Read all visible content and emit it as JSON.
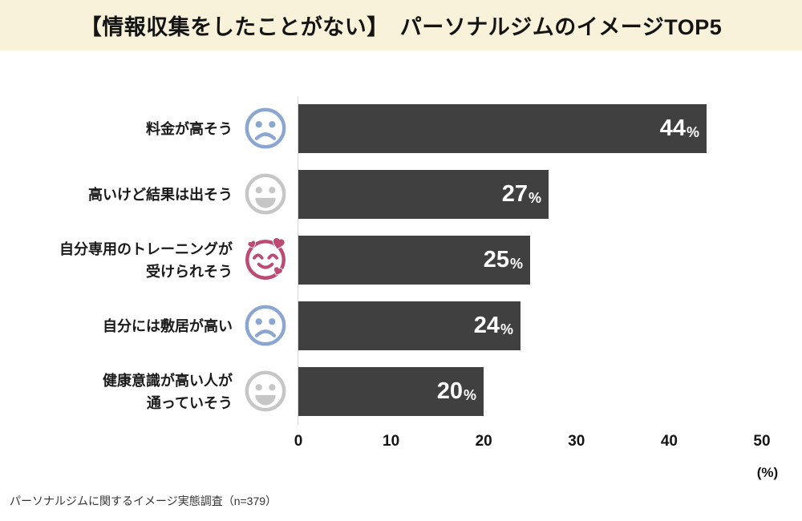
{
  "header": {
    "title": "【情報収集をしたことがない】　パーソナルジムのイメージTOP5",
    "background_color": "#F9F2DA"
  },
  "footer": {
    "source": "パーソナルジムに関するイメージ実態調査（n=379）"
  },
  "chart_data": {
    "type": "bar",
    "orientation": "horizontal",
    "title": "パーソナルジムのイメージTOP5（情報収集をしたことがない層）",
    "categories": [
      "料金が高そう",
      "高いけど結果は出そう",
      "自分専用のトレーニングが受けられそう",
      "自分には敷居が高い",
      "健康意識が高い人が通っていそう"
    ],
    "values": [
      44,
      27,
      25,
      24,
      20
    ],
    "value_suffix": "%",
    "xticks": [
      "0",
      "10",
      "20",
      "30",
      "40",
      "50"
    ],
    "xlim": [
      0,
      50
    ],
    "xlabel": "(%)",
    "grid": false,
    "legend": false,
    "bar_color": "#404040",
    "value_label_color": "#FFFFFF",
    "axis_line_color": "#D6D6D6",
    "rows": [
      {
        "label_line1": "料金が高そう",
        "label_line2": "",
        "value": 44,
        "icon": "sad-face-icon",
        "icon_color": "#8BA6D0"
      },
      {
        "label_line1": "高いけど結果は出そう",
        "label_line2": "",
        "value": 27,
        "icon": "smiley-face-icon",
        "icon_color": "#C6C6C6"
      },
      {
        "label_line1": "自分専用のトレーニングが",
        "label_line2": "受けられそう",
        "value": 25,
        "icon": "smiling-face-with-hearts-icon",
        "icon_color": "#BC4A72"
      },
      {
        "label_line1": "自分には敷居が高い",
        "label_line2": "",
        "value": 24,
        "icon": "sad-face-icon",
        "icon_color": "#8BA6D0"
      },
      {
        "label_line1": "健康意識が高い人が",
        "label_line2": "通っていそう",
        "value": 20,
        "icon": "smiley-face-icon",
        "icon_color": "#C6C6C6"
      }
    ]
  }
}
